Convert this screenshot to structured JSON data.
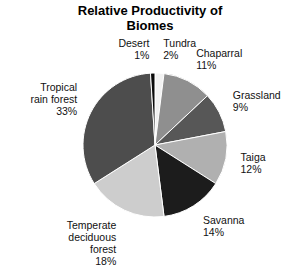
{
  "chart_data": {
    "type": "pie",
    "title": "Relative Productivity of Biomes",
    "categories": [
      "Tundra",
      "Chaparral",
      "Grassland",
      "Taiga",
      "Savanna",
      "Temperate deciduous forest",
      "Tropical rain forest",
      "Desert"
    ],
    "values": [
      2,
      11,
      9,
      12,
      14,
      18,
      33,
      1
    ],
    "value_labels": [
      "2%",
      "11%",
      "9%",
      "12%",
      "14%",
      "18%",
      "33%",
      "1%"
    ],
    "colors": [
      "#f2f2f2",
      "#8f8f8f",
      "#575757",
      "#b0b0b0",
      "#1c1c1c",
      "#cdcdcd",
      "#4d4d4d",
      "#0a0a0a"
    ],
    "data_labels": true
  }
}
